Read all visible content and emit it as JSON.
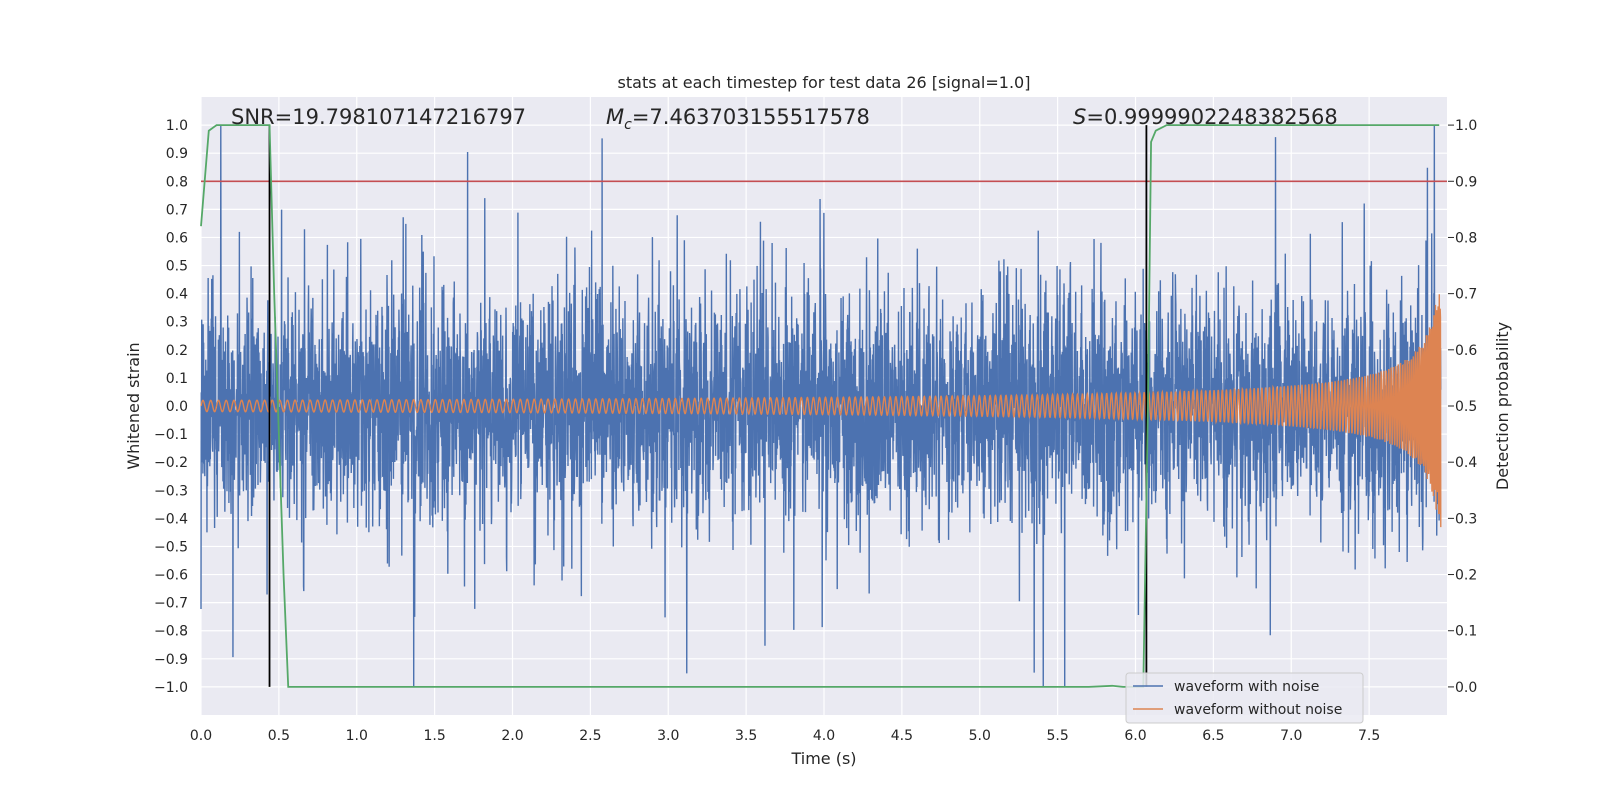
{
  "chart_data": {
    "type": "line",
    "title": "stats at each timestep for test data 26 [signal=1.0]",
    "xlabel": "Time (s)",
    "ylabel": "Whitened strain",
    "y2label": "Detection probability",
    "xlim": [
      0.0,
      8.0
    ],
    "ylim": [
      -1.1,
      1.1
    ],
    "y2lim": [
      -0.05,
      1.05
    ],
    "xticks": [
      "0.0",
      "0.5",
      "1.0",
      "1.5",
      "2.0",
      "2.5",
      "3.0",
      "3.5",
      "4.0",
      "4.5",
      "5.0",
      "5.5",
      "6.0",
      "6.5",
      "7.0",
      "7.5"
    ],
    "yticks": [
      "1.0",
      "0.9",
      "0.8",
      "0.7",
      "0.6",
      "0.5",
      "0.4",
      "0.3",
      "0.2",
      "0.1",
      "0.0",
      "−0.1",
      "−0.2",
      "−0.3",
      "−0.4",
      "−0.5",
      "−0.6",
      "−0.7",
      "−0.8",
      "−0.9",
      "−1.0"
    ],
    "y2ticks": [
      "1.0",
      "0.9",
      "0.8",
      "0.7",
      "0.6",
      "0.5",
      "0.4",
      "0.3",
      "0.2",
      "0.1",
      "0.0"
    ],
    "annotations": {
      "snr": "SNR=19.798107147216797",
      "mc_symbol": "M",
      "mc_sub": "c",
      "mc_value": "=7.463703155517578",
      "s_symbol": "S",
      "s_value": "=0.9999902248382568"
    },
    "threshold": {
      "y2": 0.9,
      "color": "#c44e52"
    },
    "vlines": [
      0.44,
      6.07
    ],
    "series": [
      {
        "name": "waveform with noise",
        "color": "#4c72b0",
        "description": "noisy whitened strain, roughly +/-0.6 with spikes up to 1.0 and down to -1.0"
      },
      {
        "name": "waveform without noise",
        "color": "#dd8452",
        "description": "chirp signal, amplitude ~0.02 at t=0 rising to ~0.5 near t=7.95"
      },
      {
        "name": "detection probability",
        "color": "#55a868",
        "axis": "y2",
        "points": [
          [
            0.0,
            0.82
          ],
          [
            0.05,
            0.99
          ],
          [
            0.1,
            1.0
          ],
          [
            0.44,
            1.0
          ],
          [
            0.47,
            0.7
          ],
          [
            0.5,
            0.45
          ],
          [
            0.53,
            0.2
          ],
          [
            0.56,
            0.0
          ],
          [
            5.7,
            0.0
          ],
          [
            5.85,
            0.002
          ],
          [
            5.92,
            0.0
          ],
          [
            6.05,
            0.0
          ],
          [
            6.08,
            0.5
          ],
          [
            6.1,
            0.97
          ],
          [
            6.13,
            0.99
          ],
          [
            6.2,
            1.0
          ],
          [
            7.95,
            1.0
          ]
        ]
      }
    ],
    "legend": [
      "waveform with noise",
      "waveform without noise"
    ],
    "legend_location": "lower-right"
  }
}
